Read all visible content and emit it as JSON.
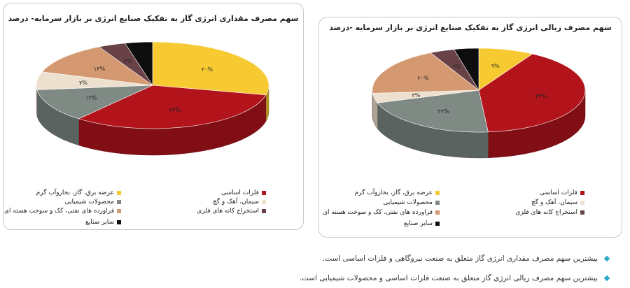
{
  "chart_data": [
    {
      "type": "pie",
      "title": "سهم مصرف مقداری انرژی گاز به تفکیک صنایع انرژی بر بازار سرمایه- درصد",
      "unit": "درصد",
      "categories": [
        "عرضه برق، گاز، بخاروآب گرم",
        "فلزات اساسی",
        "محصولات شیمیایی",
        "سیمان، آهک و گچ",
        "فراورده های نفتی، کک و سوخت هسته ای",
        "استخراج کانه های فلزی",
        "سایر صنایع"
      ],
      "values": [
        30,
        34,
        13,
        7,
        13,
        3,
        0
      ],
      "data_labels": [
        "۳۰%",
        "۳۴%",
        "۱۳%",
        "۷%",
        "۱۳%",
        "۳%",
        ""
      ],
      "colors": [
        "#f7ca32",
        "#b3141c",
        "#7f8a85",
        "#eee0cf",
        "#d49970",
        "#694248",
        "#0d0d0d"
      ],
      "legend_position": "bottom"
    },
    {
      "type": "pie",
      "title": "سهم مصرف ریالی انرژی گاز به تفکیک صنایع انرژی بر بازار سرمایه -درصد",
      "unit": "درصد",
      "categories": [
        "عرضه برق، گاز، بخاروآب گرم",
        "فلزات اساسی",
        "محصولات شیمیایی",
        "سیمان، آهک و گچ",
        "فراورده های نفتی، کک و سوخت هسته ای",
        "استخراج کانه های فلزی",
        "سایر صنایع"
      ],
      "values": [
        9,
        43,
        23,
        3,
        20,
        3,
        0
      ],
      "data_labels": [
        "۹%",
        "۴۳%",
        "۲۳%",
        "۳%",
        "۲۰%",
        "۳%",
        ""
      ],
      "colors": [
        "#f7ca32",
        "#b3141c",
        "#7f8a85",
        "#eee0cf",
        "#d49970",
        "#694248",
        "#0d0d0d"
      ],
      "legend_position": "bottom"
    }
  ],
  "notes": [
    "بیشترین سهم مصرف مقداری انرژی گاز متعلق به صنعت نیروگاهی و فلزات اساسی است.",
    "بیشترین سهم مصرف ریالی انرژی گاز متعلق به صنعت فلزات اساسی و محصولات شیمیایی است."
  ],
  "colors": {
    "bullet": "#2aa7c9",
    "card_border": "#c8c8c8"
  }
}
